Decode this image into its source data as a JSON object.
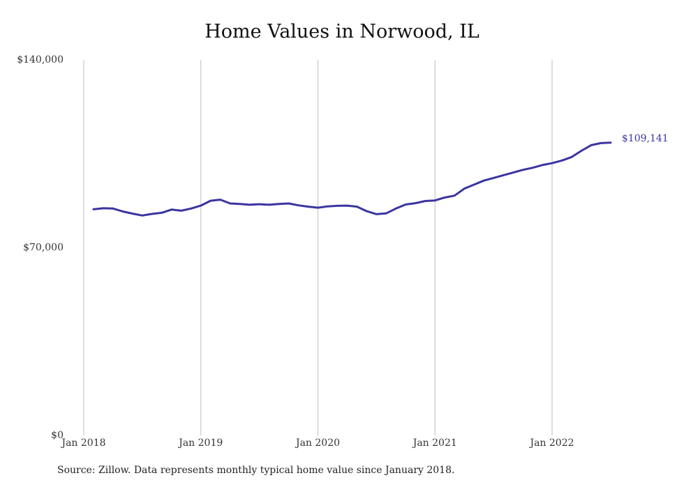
{
  "chart_data": {
    "type": "line",
    "title": "Home Values in Norwood, IL",
    "source": "Source: Zillow. Data represents monthly typical home value since January 2018.",
    "xlabel": "",
    "ylabel": "",
    "ylim": [
      0,
      140000
    ],
    "y_ticks": [
      {
        "value": 0,
        "label": "$0"
      },
      {
        "value": 70000,
        "label": "$70,000"
      },
      {
        "value": 140000,
        "label": "$140,000"
      }
    ],
    "x_ticks": [
      {
        "value": "2018-01",
        "label": "Jan 2018"
      },
      {
        "value": "2019-01",
        "label": "Jan 2019"
      },
      {
        "value": "2020-01",
        "label": "Jan 2020"
      },
      {
        "value": "2021-01",
        "label": "Jan 2021"
      },
      {
        "value": "2022-01",
        "label": "Jan 2022"
      }
    ],
    "x_range": [
      "2018-01",
      "2022-07"
    ],
    "grid": "vertical",
    "color": "#3a35a0",
    "end_label": "$109,141",
    "series": [
      {
        "x": [
          "2018-02",
          "2018-03",
          "2018-04",
          "2018-05",
          "2018-06",
          "2018-07",
          "2018-08",
          "2018-09",
          "2018-10",
          "2018-11",
          "2018-12",
          "2019-01",
          "2019-02",
          "2019-03",
          "2019-04",
          "2019-05",
          "2019-06",
          "2019-07",
          "2019-08",
          "2019-09",
          "2019-10",
          "2019-11",
          "2019-12",
          "2020-01",
          "2020-02",
          "2020-03",
          "2020-04",
          "2020-05",
          "2020-06",
          "2020-07",
          "2020-08",
          "2020-09",
          "2020-10",
          "2020-11",
          "2020-12",
          "2021-01",
          "2021-02",
          "2021-03",
          "2021-04",
          "2021-05",
          "2021-06",
          "2021-07",
          "2021-08",
          "2021-09",
          "2021-10",
          "2021-11",
          "2021-12",
          "2022-01",
          "2022-02",
          "2022-03",
          "2022-04",
          "2022-05",
          "2022-06",
          "2022-07"
        ],
        "values": [
          84300,
          84700,
          84600,
          83500,
          82700,
          82000,
          82600,
          83000,
          84200,
          83800,
          84600,
          85700,
          87500,
          87900,
          86500,
          86300,
          86000,
          86200,
          86000,
          86300,
          86500,
          85800,
          85300,
          84900,
          85400,
          85600,
          85700,
          85300,
          83600,
          82500,
          82800,
          84600,
          86100,
          86600,
          87400,
          87600,
          88700,
          89400,
          92000,
          93500,
          95000,
          96000,
          97000,
          98000,
          99000,
          99800,
          100800,
          101500,
          102500,
          103800,
          106100,
          108200,
          109000,
          109141
        ]
      }
    ]
  }
}
